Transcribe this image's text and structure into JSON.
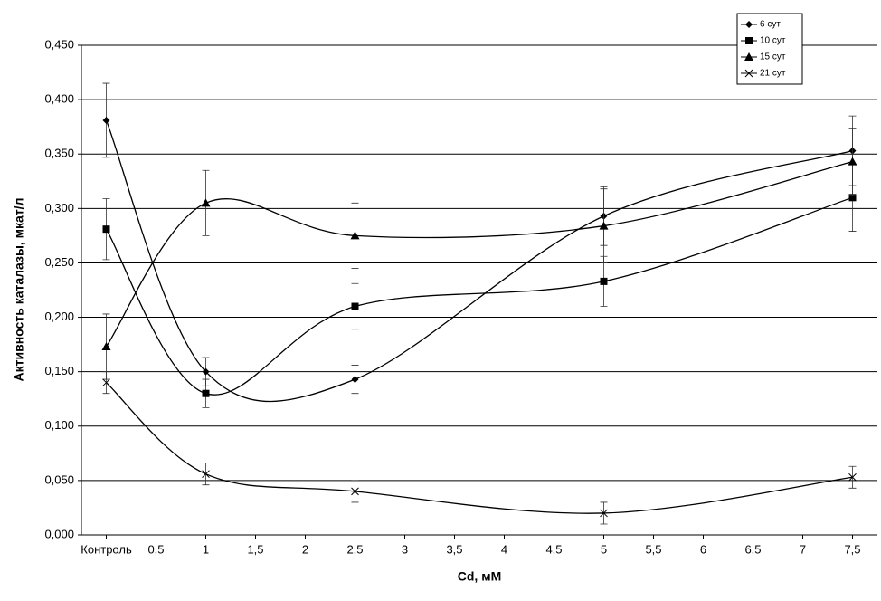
{
  "chart_data": {
    "type": "line",
    "smooth": true,
    "y_label": "Активность каталазы, мкат/л",
    "x_label": "Cd, мМ",
    "xlim": [
      -0.25,
      7.75
    ],
    "xticks": [
      {
        "value": 0,
        "label": "Контроль"
      },
      {
        "value": 0.5,
        "label": "0,5"
      },
      1,
      {
        "value": 1.5,
        "label": "1,5"
      },
      2,
      {
        "value": 2.5,
        "label": "2,5"
      },
      3,
      {
        "value": 3.5,
        "label": "3,5"
      },
      4,
      {
        "value": 4.5,
        "label": "4,5"
      },
      5,
      {
        "value": 5.5,
        "label": "5,5"
      },
      6,
      {
        "value": 6.5,
        "label": "6,5"
      },
      7,
      {
        "value": 7.5,
        "label": "7,5"
      }
    ],
    "ylim": [
      0,
      0.45
    ],
    "yticks": [
      {
        "value": 0,
        "label": "0,000"
      },
      {
        "value": 0.05,
        "label": "0,050"
      },
      {
        "value": 0.1,
        "label": "0,100"
      },
      {
        "value": 0.15,
        "label": "0,150"
      },
      {
        "value": 0.2,
        "label": "0,200"
      },
      {
        "value": 0.25,
        "label": "0,250"
      },
      {
        "value": 0.3,
        "label": "0,300"
      },
      {
        "value": 0.35,
        "label": "0,350"
      },
      {
        "value": 0.4,
        "label": "0,400"
      },
      {
        "value": 0.45,
        "label": "0,450"
      }
    ],
    "grid": true,
    "legend": "upper right",
    "x": [
      0,
      1,
      2.5,
      5,
      7.5
    ],
    "series": [
      {
        "name": "6 сут",
        "color": "#000000",
        "marker": "diamond",
        "values": [
          0.381,
          0.15,
          0.143,
          0.293,
          0.353
        ],
        "errors": [
          0.034,
          0.013,
          0.013,
          0.027,
          0.032
        ]
      },
      {
        "name": "10 сут",
        "color": "#000000",
        "marker": "square",
        "values": [
          0.281,
          0.13,
          0.21,
          0.233,
          0.31
        ],
        "errors": [
          0.028,
          0.013,
          0.021,
          0.023,
          0.031
        ]
      },
      {
        "name": "15 сут",
        "color": "#000000",
        "marker": "triangle",
        "values": [
          0.173,
          0.305,
          0.275,
          0.284,
          0.343
        ],
        "errors": [
          0.03,
          0.03,
          0.03,
          0.034,
          0.031
        ]
      },
      {
        "name": "21 сут",
        "color": "#000000",
        "marker": "x",
        "values": [
          0.14,
          0.056,
          0.04,
          0.02,
          0.053
        ],
        "errors": [
          0.01,
          0.01,
          0.01,
          0.01,
          0.01
        ]
      }
    ]
  }
}
